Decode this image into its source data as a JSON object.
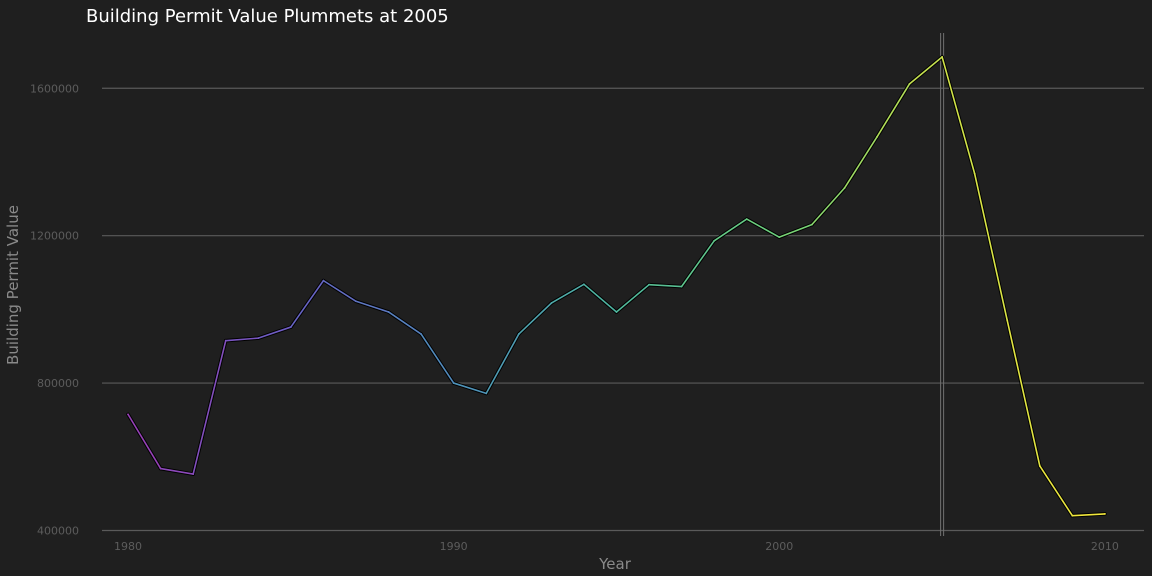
{
  "chart_data": {
    "type": "line",
    "title": "Building Permit Value Plummets at 2005",
    "xlabel": "Year",
    "ylabel": "Building Permit Value",
    "xlim": [
      1979.2,
      2011.2
    ],
    "ylim": [
      385000,
      1750000
    ],
    "x_ticks": [
      1980,
      1990,
      2000,
      2010
    ],
    "y_ticks": [
      400000,
      800000,
      1200000,
      1600000
    ],
    "x_tick_labels": [
      "1980",
      "1990",
      "2000",
      "2010"
    ],
    "y_tick_labels": [
      "400000",
      "800000",
      "1200000",
      "1600000"
    ],
    "grid": "horizontal major",
    "reference_line_x": 2005,
    "color_gradient": [
      "#9b3fb6",
      "#6a5fc4",
      "#4f8fbb",
      "#4fb79e",
      "#6fd07a",
      "#cde24a",
      "#f5e83a"
    ],
    "x": [
      1980,
      1981,
      1982,
      1983,
      1984,
      1985,
      1986,
      1987,
      1988,
      1989,
      1990,
      1991,
      1992,
      1993,
      1994,
      1995,
      1996,
      1997,
      1998,
      1999,
      2000,
      2001,
      2002,
      2003,
      2004,
      2005,
      2006,
      2007,
      2008,
      2009,
      2010
    ],
    "values": [
      715000,
      568000,
      553000,
      915000,
      922000,
      952000,
      1078000,
      1022000,
      993000,
      933000,
      800000,
      772000,
      933000,
      1017000,
      1068000,
      993000,
      1067000,
      1062000,
      1186000,
      1245000,
      1196000,
      1230000,
      1329000,
      1468000,
      1612000,
      1685000,
      1368000,
      970000,
      575000,
      440000,
      445000
    ]
  }
}
